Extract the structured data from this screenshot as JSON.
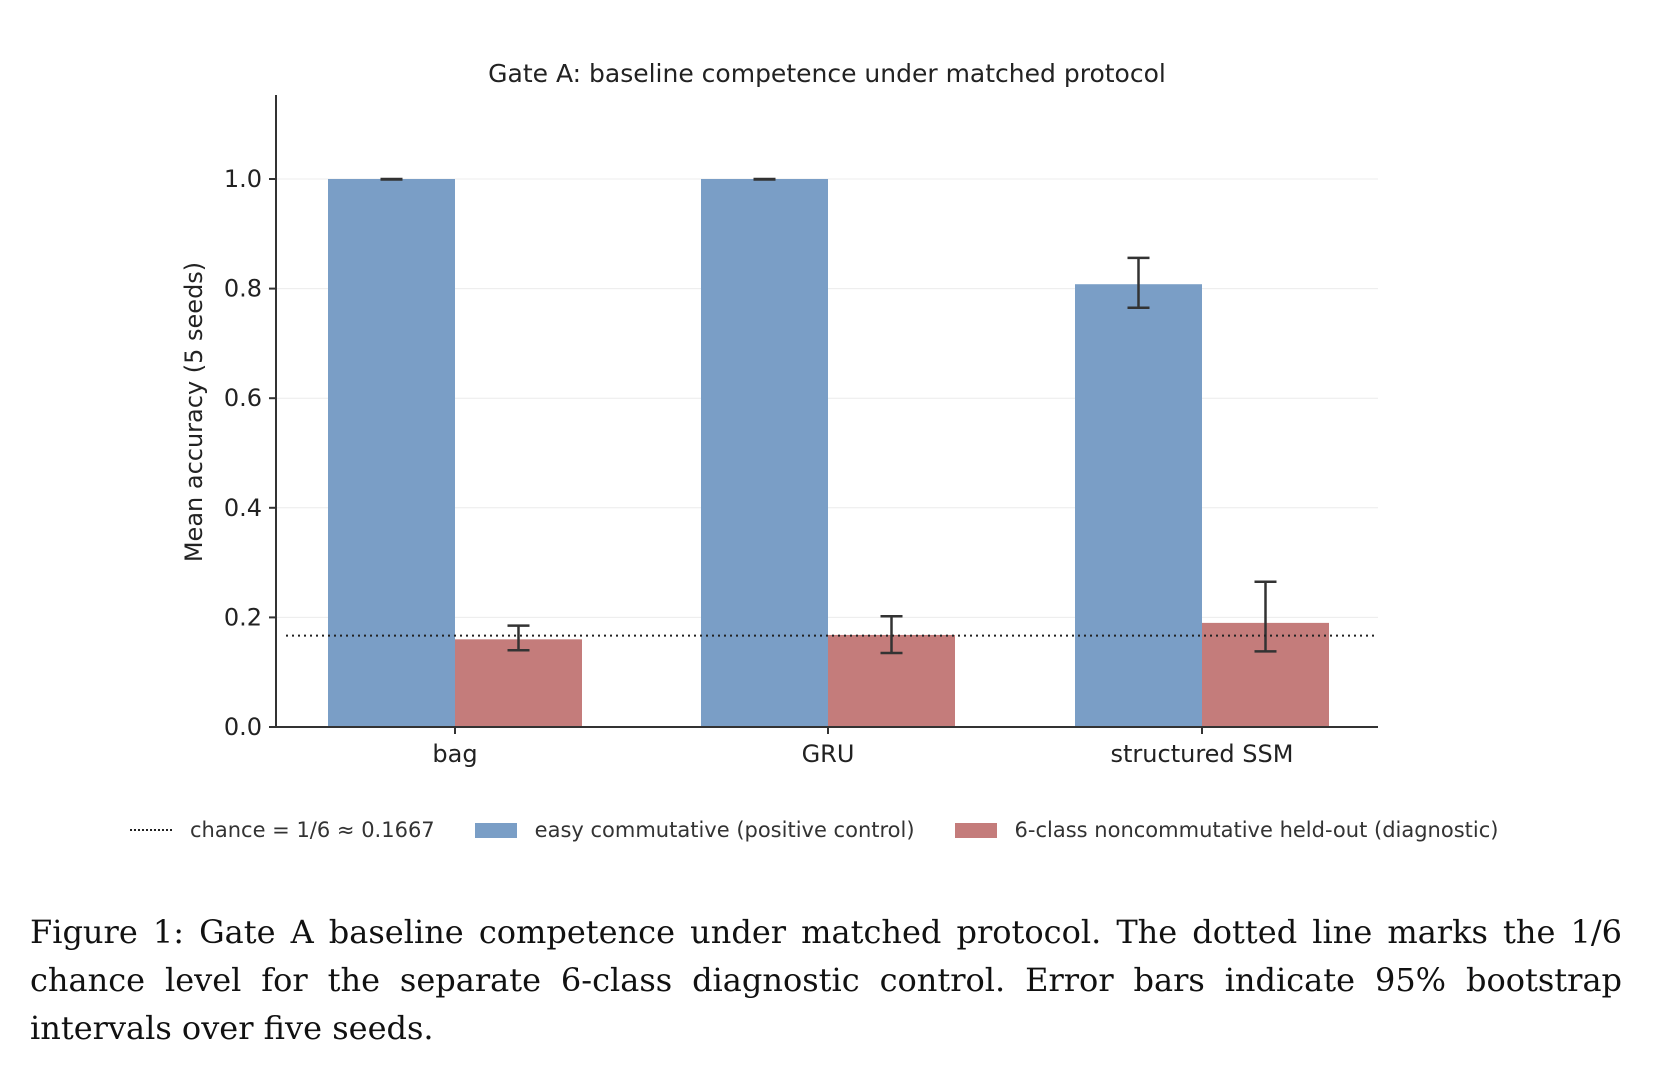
{
  "chart_data": {
    "type": "bar",
    "title": "Gate A: baseline competence under matched protocol",
    "xlabel": "",
    "ylabel": "Mean accuracy (5 seeds)",
    "categories": [
      "bag",
      "GRU",
      "structured SSM"
    ],
    "ylim": [
      0.0,
      1.15
    ],
    "yticks": [
      0.0,
      0.2,
      0.4,
      0.6,
      0.8,
      1.0
    ],
    "ytick_labels": [
      "0.0",
      "0.2",
      "0.4",
      "0.6",
      "0.8",
      "1.0"
    ],
    "grid": "horizontal",
    "legend_position": "bottom",
    "series": [
      {
        "name": "easy commutative (positive control)",
        "color": "#7a9ec6",
        "values": [
          1.0,
          1.0,
          0.808
        ],
        "ci_low": [
          0.999,
          0.999,
          0.765
        ],
        "ci_high": [
          1.0,
          1.0,
          0.856
        ]
      },
      {
        "name": "6-class noncommutative held-out (diagnostic)",
        "color": "#c47c7b",
        "values": [
          0.16,
          0.168,
          0.19
        ],
        "ci_low": [
          0.14,
          0.135,
          0.138
        ],
        "ci_high": [
          0.185,
          0.202,
          0.265
        ]
      }
    ],
    "reference_line": {
      "label": "chance = 1/6 ≈ 0.1667",
      "value": 0.1667,
      "style": "dotted"
    }
  },
  "caption": "Figure 1: Gate A baseline competence under matched protocol. The dotted line marks the 1/6 chance level for the separate 6-class diagnostic control. Error bars indicate 95% bootstrap intervals over five seeds."
}
